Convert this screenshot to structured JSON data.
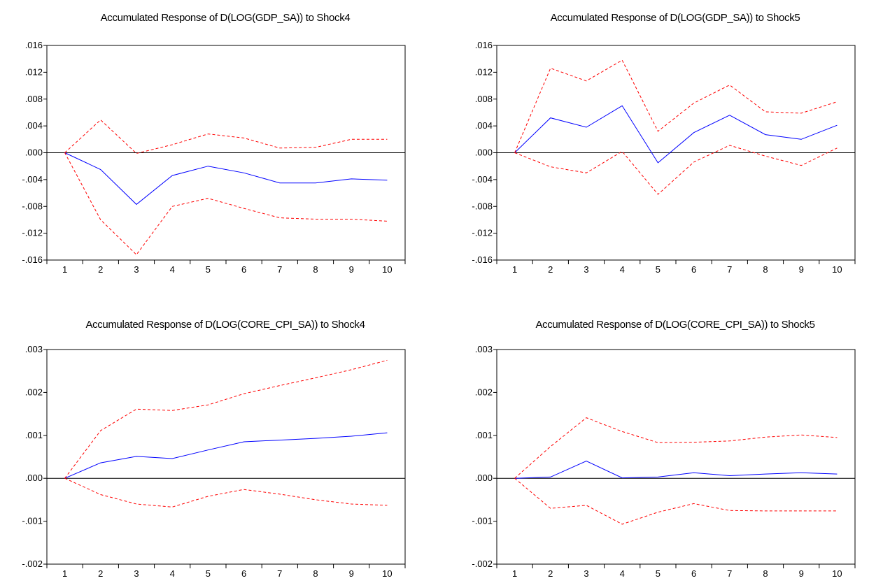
{
  "chart_data": [
    {
      "type": "line",
      "title": "Accumulated Response of D(LOG(GDP_SA)) to Shock4",
      "categories": [
        "1",
        "2",
        "3",
        "4",
        "5",
        "6",
        "7",
        "8",
        "9",
        "10"
      ],
      "ylim": [
        -0.016,
        0.016
      ],
      "yticks": [
        0.016,
        0.012,
        0.008,
        0.004,
        0.0,
        -0.004,
        -0.008,
        -0.012,
        -0.016
      ],
      "ytick_labels": [
        ".016",
        ".012",
        ".008",
        ".004",
        ".000",
        "-.004",
        "-.008",
        "-.012",
        "-.016"
      ],
      "grid": false,
      "series": [
        {
          "role": "response",
          "style": "solid",
          "color": "#0000ff",
          "values": [
            0.0,
            -0.0025,
            -0.0077,
            -0.0034,
            -0.002,
            -0.003,
            -0.0045,
            -0.0045,
            -0.0039,
            -0.0041
          ]
        },
        {
          "role": "upper",
          "style": "dashed",
          "color": "#ff0000",
          "values": [
            0.0,
            0.0049,
            -0.0001,
            0.0012,
            0.0028,
            0.0022,
            0.0007,
            0.0008,
            0.002,
            0.002
          ]
        },
        {
          "role": "lower",
          "style": "dashed",
          "color": "#ff0000",
          "values": [
            0.0,
            -0.01,
            -0.0152,
            -0.008,
            -0.0068,
            -0.0083,
            -0.0097,
            -0.0099,
            -0.0099,
            -0.0102
          ]
        }
      ]
    },
    {
      "type": "line",
      "title": "Accumulated Response of D(LOG(GDP_SA)) to Shock5",
      "categories": [
        "1",
        "2",
        "3",
        "4",
        "5",
        "6",
        "7",
        "8",
        "9",
        "10"
      ],
      "ylim": [
        -0.016,
        0.016
      ],
      "yticks": [
        0.016,
        0.012,
        0.008,
        0.004,
        0.0,
        -0.004,
        -0.008,
        -0.012,
        -0.016
      ],
      "ytick_labels": [
        ".016",
        ".012",
        ".008",
        ".004",
        ".000",
        "-.004",
        "-.008",
        "-.012",
        "-.016"
      ],
      "grid": false,
      "series": [
        {
          "role": "response",
          "style": "solid",
          "color": "#0000ff",
          "values": [
            0.0,
            0.0052,
            0.0038,
            0.007,
            -0.0015,
            0.003,
            0.0056,
            0.0027,
            0.002,
            0.0041
          ]
        },
        {
          "role": "upper",
          "style": "dashed",
          "color": "#ff0000",
          "values": [
            0.0,
            0.0126,
            0.0107,
            0.0138,
            0.0032,
            0.0074,
            0.0101,
            0.0061,
            0.0059,
            0.0076
          ]
        },
        {
          "role": "lower",
          "style": "dashed",
          "color": "#ff0000",
          "values": [
            0.0,
            -0.0021,
            -0.003,
            0.0002,
            -0.0062,
            -0.0014,
            0.0011,
            -0.0005,
            -0.0019,
            0.0007
          ]
        }
      ]
    },
    {
      "type": "line",
      "title": "Accumulated Response of D(LOG(CORE_CPI_SA)) to Shock4",
      "categories": [
        "1",
        "2",
        "3",
        "4",
        "5",
        "6",
        "7",
        "8",
        "9",
        "10"
      ],
      "ylim": [
        -0.002,
        0.003
      ],
      "yticks": [
        0.003,
        0.002,
        0.001,
        0.0,
        -0.001,
        -0.002
      ],
      "ytick_labels": [
        ".003",
        ".002",
        ".001",
        ".000",
        "-.001",
        "-.002"
      ],
      "grid": false,
      "series": [
        {
          "role": "response",
          "style": "solid",
          "color": "#0000ff",
          "values": [
            0.0,
            0.00036,
            0.00051,
            0.00046,
            0.00066,
            0.00085,
            0.00089,
            0.00093,
            0.00098,
            0.00106
          ]
        },
        {
          "role": "upper",
          "style": "dashed",
          "color": "#ff0000",
          "values": [
            0.0,
            0.00111,
            0.00161,
            0.00158,
            0.00171,
            0.00197,
            0.00216,
            0.00234,
            0.00253,
            0.00275
          ]
        },
        {
          "role": "lower",
          "style": "dashed",
          "color": "#ff0000",
          "values": [
            0.0,
            -0.00038,
            -0.0006,
            -0.00067,
            -0.00042,
            -0.00026,
            -0.00037,
            -0.0005,
            -0.0006,
            -0.00063
          ]
        }
      ]
    },
    {
      "type": "line",
      "title": "Accumulated Response of D(LOG(CORE_CPI_SA)) to Shock5",
      "categories": [
        "1",
        "2",
        "3",
        "4",
        "5",
        "6",
        "7",
        "8",
        "9",
        "10"
      ],
      "ylim": [
        -0.002,
        0.003
      ],
      "yticks": [
        0.003,
        0.002,
        0.001,
        0.0,
        -0.001,
        -0.002
      ],
      "ytick_labels": [
        ".003",
        ".002",
        ".001",
        ".000",
        "-.001",
        "-.002"
      ],
      "grid": false,
      "series": [
        {
          "role": "response",
          "style": "solid",
          "color": "#0000ff",
          "values": [
            0.0,
            3e-05,
            0.0004,
            1e-05,
            3e-05,
            0.00013,
            6e-05,
            0.0001,
            0.00013,
            0.0001
          ]
        },
        {
          "role": "upper",
          "style": "dashed",
          "color": "#ff0000",
          "values": [
            0.0,
            0.00074,
            0.00141,
            0.00109,
            0.00083,
            0.00084,
            0.00087,
            0.00096,
            0.00101,
            0.00095
          ]
        },
        {
          "role": "lower",
          "style": "dashed",
          "color": "#ff0000",
          "values": [
            0.0,
            -0.0007,
            -0.00063,
            -0.00107,
            -0.00079,
            -0.00059,
            -0.00075,
            -0.00076,
            -0.00076,
            -0.00076
          ]
        }
      ]
    }
  ]
}
